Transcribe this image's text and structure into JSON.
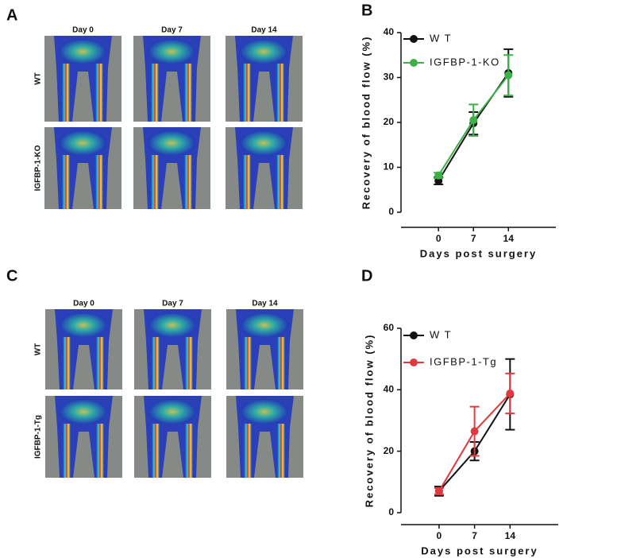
{
  "image_panels": [
    {
      "panel_label": "A",
      "columns": [
        "Day 0",
        "Day 7",
        "Day 14"
      ],
      "rows": [
        "WT",
        "IGFBP-1-KO"
      ]
    },
    {
      "panel_label": "C",
      "columns": [
        "Day 0",
        "Day 7",
        "Day 14"
      ],
      "rows": [
        "WT",
        "IGFBP-1-Tg"
      ]
    }
  ],
  "chart_data": [
    {
      "type": "line",
      "panel_label": "B",
      "x_label": "Days post surgery",
      "y_label": "Recovery of blood flow (%)",
      "x": [
        0,
        7,
        14
      ],
      "xlim": [
        -7.5,
        23.5
      ],
      "xticks": [
        0,
        7,
        14
      ],
      "ylim": [
        0,
        40
      ],
      "yticks": [
        0,
        10,
        20,
        30,
        40
      ],
      "legend": "upper-left",
      "series": [
        {
          "name": "W T",
          "color": "#111111",
          "values": [
            7,
            19.8,
            31
          ],
          "errors": [
            0.8,
            2.5,
            5.3
          ]
        },
        {
          "name": "IGFBP-1-KO",
          "color": "#3db04a",
          "values": [
            8.2,
            20.5,
            30.5
          ],
          "errors": [
            0.6,
            3.5,
            4.5
          ]
        }
      ]
    },
    {
      "type": "line",
      "panel_label": "D",
      "x_label": "Days post surgery",
      "y_label": "Recovery of blood flow (%)",
      "x": [
        0,
        7,
        14
      ],
      "xlim": [
        -7.5,
        23.5
      ],
      "xticks": [
        0,
        7,
        14
      ],
      "ylim": [
        0,
        60
      ],
      "yticks": [
        0,
        20,
        40,
        60
      ],
      "legend": "upper-left",
      "series": [
        {
          "name": "W T",
          "color": "#111111",
          "values": [
            7,
            20,
            38.5
          ],
          "errors": [
            1.5,
            3,
            11.5
          ]
        },
        {
          "name": "IGFBP-1-Tg",
          "color": "#e0393e",
          "values": [
            7,
            26.5,
            38.8
          ],
          "errors": [
            1,
            8,
            6.5
          ]
        }
      ]
    }
  ]
}
